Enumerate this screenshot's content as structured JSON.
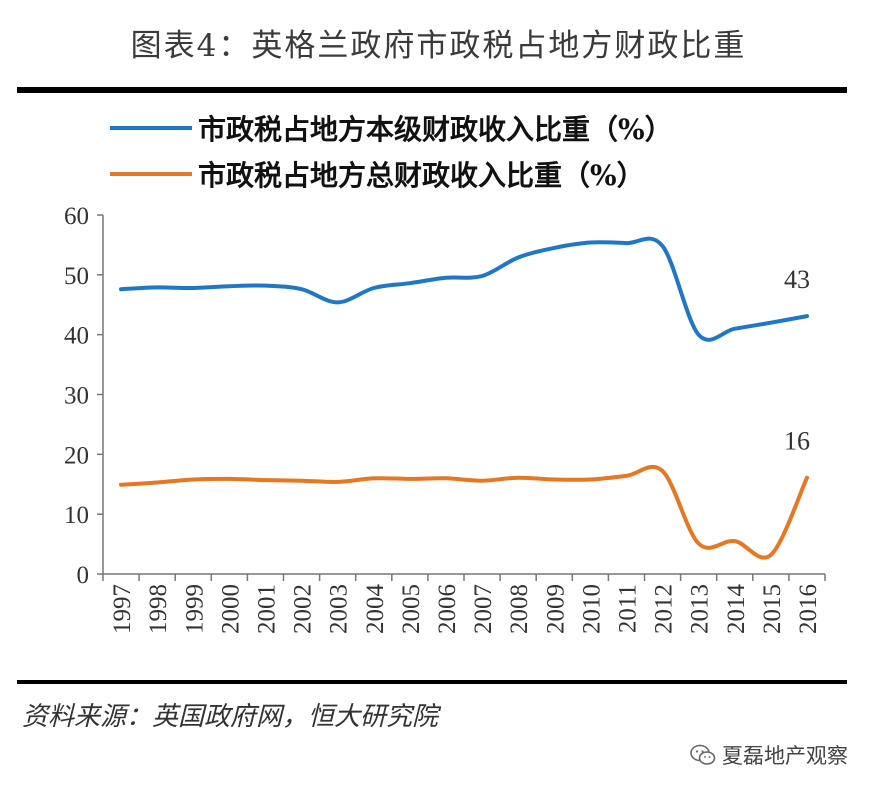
{
  "title": "图表4：英格兰政府市政税占地方财政比重",
  "source": "资料来源：英国政府网，恒大研究院",
  "watermark": {
    "text": "夏磊地产观察",
    "icon": "wechat-icon"
  },
  "chart_data": {
    "type": "line",
    "x": [
      "1997",
      "1998",
      "1999",
      "2000",
      "2001",
      "2002",
      "2003",
      "2004",
      "2005",
      "2006",
      "2007",
      "2008",
      "2009",
      "2010",
      "2011",
      "2012",
      "2013",
      "2014",
      "2015",
      "2016"
    ],
    "ylim": [
      0,
      60
    ],
    "yticks": [
      0,
      10,
      20,
      30,
      40,
      50,
      60
    ],
    "grid": false,
    "legend": "top",
    "series": [
      {
        "name": "市政税占地方本级财政收入比重（%）",
        "color": "#1f77c8",
        "values": [
          47.6,
          47.9,
          47.8,
          48.1,
          48.2,
          47.6,
          45.4,
          47.8,
          48.6,
          49.5,
          49.8,
          52.9,
          54.5,
          55.4,
          55.3,
          54.8,
          40.0,
          41.0,
          42.0,
          43.1
        ],
        "end_label": "43"
      },
      {
        "name": "市政税占地方总财政收入比重（%）",
        "color": "#e87722",
        "values": [
          14.9,
          15.3,
          15.8,
          15.9,
          15.7,
          15.6,
          15.4,
          16.0,
          15.9,
          16.0,
          15.6,
          16.1,
          15.8,
          15.8,
          16.4,
          17.2,
          5.1,
          5.5,
          3.2,
          16.1
        ],
        "end_label": "16"
      }
    ]
  }
}
